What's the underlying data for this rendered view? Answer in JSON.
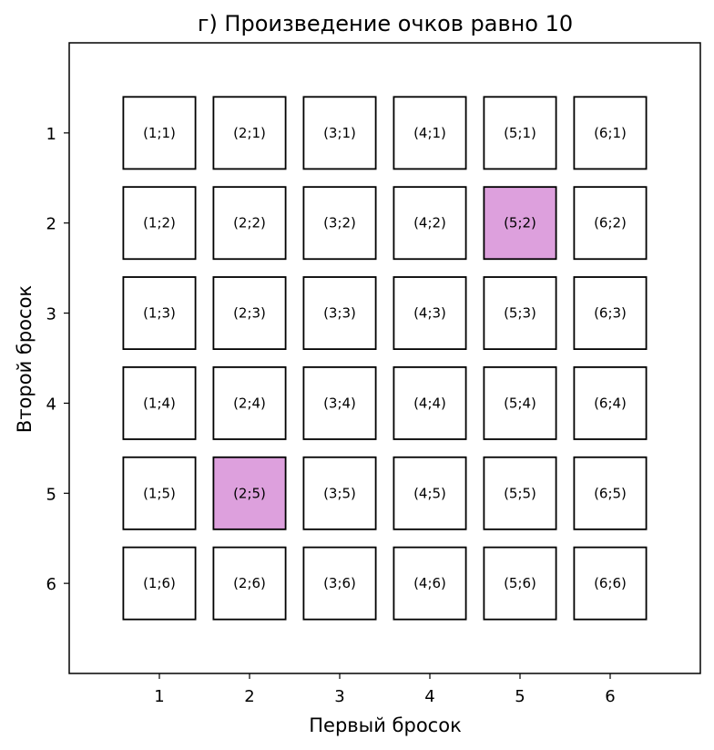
{
  "chart_data": {
    "type": "heatmap",
    "title": "г) Произведение очков равно 10",
    "xlabel": "Первый бросок",
    "ylabel": "Второй бросок",
    "x_ticks": [
      "1",
      "2",
      "3",
      "4",
      "5",
      "6"
    ],
    "y_ticks": [
      "1",
      "2",
      "3",
      "4",
      "5",
      "6"
    ],
    "xlim": [
      0,
      7
    ],
    "ylim": [
      7,
      0
    ],
    "y_inverted": true,
    "highlight_color": "#dda0dd",
    "base_color": "#ffffff",
    "cells": [
      {
        "x": 1,
        "y": 1,
        "label": "(1;1)",
        "highlighted": false
      },
      {
        "x": 2,
        "y": 1,
        "label": "(2;1)",
        "highlighted": false
      },
      {
        "x": 3,
        "y": 1,
        "label": "(3;1)",
        "highlighted": false
      },
      {
        "x": 4,
        "y": 1,
        "label": "(4;1)",
        "highlighted": false
      },
      {
        "x": 5,
        "y": 1,
        "label": "(5;1)",
        "highlighted": false
      },
      {
        "x": 6,
        "y": 1,
        "label": "(6;1)",
        "highlighted": false
      },
      {
        "x": 1,
        "y": 2,
        "label": "(1;2)",
        "highlighted": false
      },
      {
        "x": 2,
        "y": 2,
        "label": "(2;2)",
        "highlighted": false
      },
      {
        "x": 3,
        "y": 2,
        "label": "(3;2)",
        "highlighted": false
      },
      {
        "x": 4,
        "y": 2,
        "label": "(4;2)",
        "highlighted": false
      },
      {
        "x": 5,
        "y": 2,
        "label": "(5;2)",
        "highlighted": true
      },
      {
        "x": 6,
        "y": 2,
        "label": "(6;2)",
        "highlighted": false
      },
      {
        "x": 1,
        "y": 3,
        "label": "(1;3)",
        "highlighted": false
      },
      {
        "x": 2,
        "y": 3,
        "label": "(2;3)",
        "highlighted": false
      },
      {
        "x": 3,
        "y": 3,
        "label": "(3;3)",
        "highlighted": false
      },
      {
        "x": 4,
        "y": 3,
        "label": "(4;3)",
        "highlighted": false
      },
      {
        "x": 5,
        "y": 3,
        "label": "(5;3)",
        "highlighted": false
      },
      {
        "x": 6,
        "y": 3,
        "label": "(6;3)",
        "highlighted": false
      },
      {
        "x": 1,
        "y": 4,
        "label": "(1;4)",
        "highlighted": false
      },
      {
        "x": 2,
        "y": 4,
        "label": "(2;4)",
        "highlighted": false
      },
      {
        "x": 3,
        "y": 4,
        "label": "(3;4)",
        "highlighted": false
      },
      {
        "x": 4,
        "y": 4,
        "label": "(4;4)",
        "highlighted": false
      },
      {
        "x": 5,
        "y": 4,
        "label": "(5;4)",
        "highlighted": false
      },
      {
        "x": 6,
        "y": 4,
        "label": "(6;4)",
        "highlighted": false
      },
      {
        "x": 1,
        "y": 5,
        "label": "(1;5)",
        "highlighted": false
      },
      {
        "x": 2,
        "y": 5,
        "label": "(2;5)",
        "highlighted": true
      },
      {
        "x": 3,
        "y": 5,
        "label": "(3;5)",
        "highlighted": false
      },
      {
        "x": 4,
        "y": 5,
        "label": "(4;5)",
        "highlighted": false
      },
      {
        "x": 5,
        "y": 5,
        "label": "(5;5)",
        "highlighted": false
      },
      {
        "x": 6,
        "y": 5,
        "label": "(6;5)",
        "highlighted": false
      },
      {
        "x": 1,
        "y": 6,
        "label": "(1;6)",
        "highlighted": false
      },
      {
        "x": 2,
        "y": 6,
        "label": "(2;6)",
        "highlighted": false
      },
      {
        "x": 3,
        "y": 6,
        "label": "(3;6)",
        "highlighted": false
      },
      {
        "x": 4,
        "y": 6,
        "label": "(4;6)",
        "highlighted": false
      },
      {
        "x": 5,
        "y": 6,
        "label": "(5;6)",
        "highlighted": false
      },
      {
        "x": 6,
        "y": 6,
        "label": "(6;6)",
        "highlighted": false
      }
    ]
  }
}
